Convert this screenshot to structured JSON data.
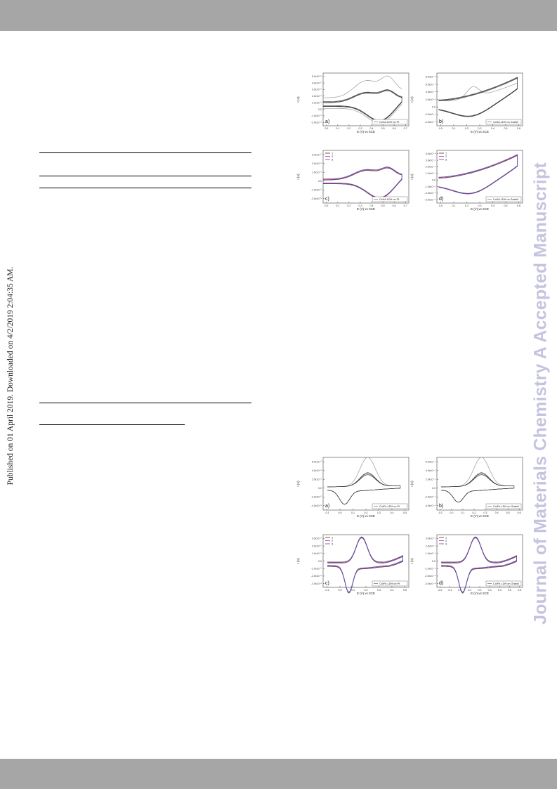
{
  "stamp": "Published on 01 April 2019. Downloaded on 4/2/2019 2:04:35 AM.",
  "watermark": "Journal of Materials Chemistry A Accepted Manuscript",
  "colors": {
    "cycle1": "#3a3a3a",
    "cycle2": "#c03a5a",
    "cycle3": "#4b4bd6",
    "firstscan": "#9a9a9a",
    "bars": "#a6a6a6",
    "watermark": "#c5c4e0"
  },
  "panels": [
    {
      "letter": "a)",
      "legend": "Co/Ni-LDH on Pt",
      "xlabel": "E (V) vs SCE",
      "ylabel": "I (A)",
      "x_ticks": [
        "0.0",
        "0.1",
        "0.2",
        "0.3",
        "0.4",
        "0.5",
        "0.6",
        "0.7"
      ],
      "y_ticks": [
        "5.0x10⁻⁵",
        "4.0x10⁻⁵",
        "3.0x10⁻⁵",
        "2.0x10⁻⁵",
        "1.0x10⁻⁵",
        "0.0",
        "-1.0x10⁻⁵",
        "-2.0x10⁻⁵"
      ],
      "cycles": []
    },
    {
      "letter": "b)",
      "legend": "Co/Ni-LDH on Grafoil",
      "xlabel": "E (V) vs SCE",
      "ylabel": "I (A)",
      "x_ticks": [
        "0.0",
        "0.1",
        "0.2",
        "0.3",
        "0.4",
        "0.5",
        "0.6"
      ],
      "y_ticks": [
        "8.0x10⁻⁴",
        "6.0x10⁻⁴",
        "4.0x10⁻⁴",
        "2.0x10⁻⁴",
        "0.0",
        "-2.0x10⁻⁴",
        "-4.0x10⁻⁴"
      ],
      "cycles": []
    },
    {
      "letter": "c)",
      "legend": "Co/Ni-LDH on Pt",
      "xlabel": "E (V) vs SCE",
      "ylabel": "I (A)",
      "x_ticks": [
        "0.0",
        "0.1",
        "0.2",
        "0.3",
        "0.4",
        "0.5",
        "0.6",
        "0.7"
      ],
      "y_ticks": [
        "3.0x10⁻⁵",
        "2.0x10⁻⁵",
        "1.0x10⁻⁵",
        "0.0",
        "-1.0x10⁻⁵",
        "-2.0x10⁻⁵"
      ],
      "cycles": [
        "1",
        "2",
        "3"
      ]
    },
    {
      "letter": "d)",
      "legend": "Co/Ni-LDH on Grafoil",
      "xlabel": "E (V) vs SCE",
      "ylabel": "I (A)",
      "x_ticks": [
        "0.0",
        "0.1",
        "0.2",
        "0.3",
        "0.4",
        "0.5",
        "0.6"
      ],
      "y_ticks": [
        "4.0x10⁻⁴",
        "3.0x10⁻⁴",
        "2.0x10⁻⁴",
        "1.0x10⁻⁴",
        "0.0",
        "-1.0x10⁻⁴",
        "-2.0x10⁻⁴",
        "-3.0x10⁻⁴"
      ],
      "cycles": [
        "1",
        "2",
        "3"
      ]
    },
    {
      "letter": "a)",
      "legend": "Co/Fe-LDH on Pt",
      "xlabel": "E (V) vs SCE",
      "ylabel": "I (A)",
      "x_ticks": [
        "-0.1",
        "0.0",
        "0.1",
        "0.2",
        "0.3",
        "0.4",
        "0.5"
      ],
      "y_ticks": [
        "6.0x10⁻⁵",
        "4.0x10⁻⁵",
        "2.0x10⁻⁵",
        "0.0",
        "-2.0x10⁻⁵",
        "-4.0x10⁻⁵"
      ],
      "cycles": []
    },
    {
      "letter": "b)",
      "legend": "Co/Fe-LDH on Grafoil",
      "xlabel": "E (V) vs SCE",
      "ylabel": "I (A)",
      "x_ticks": [
        "-0.1",
        "0.0",
        "0.1",
        "0.2",
        "0.3",
        "0.4",
        "0.5",
        "0.6"
      ],
      "y_ticks": [
        "6.0x10⁻⁴",
        "4.0x10⁻⁴",
        "2.0x10⁻⁴",
        "0.0",
        "-2.0x10⁻⁴",
        "-4.0x10⁻⁴"
      ],
      "cycles": []
    },
    {
      "letter": "c)",
      "legend": "Co/Fe-LDH on Pt",
      "xlabel": "E (V) vs SCE",
      "ylabel": "I (A)",
      "x_ticks": [
        "-0.1",
        "0.0",
        "0.1",
        "0.2",
        "0.3",
        "0.4",
        "0.5"
      ],
      "y_ticks": [
        "3.0x10⁻⁵",
        "2.0x10⁻⁵",
        "1.0x10⁻⁵",
        "0.0",
        "-1.0x10⁻⁵",
        "-2.0x10⁻⁵",
        "-3.0x10⁻⁵"
      ],
      "cycles": [
        "1",
        "2",
        "3"
      ]
    },
    {
      "letter": "d)",
      "legend": "Co/Fe-LDH on Grafoil",
      "xlabel": "E (V) vs SCE",
      "ylabel": "I (A)",
      "x_ticks": [
        "-0.2",
        "-0.1",
        "0.0",
        "0.1",
        "0.2",
        "0.3",
        "0.4",
        "0.5",
        "0.6"
      ],
      "y_ticks": [
        "3.0x10⁻⁴",
        "2.0x10⁻⁴",
        "1.0x10⁻⁴",
        "0.0",
        "-1.0x10⁻⁴",
        "-2.0x10⁻⁴",
        "-3.0x10⁻⁴"
      ],
      "cycles": [
        "1",
        "2",
        "3"
      ]
    }
  ]
}
